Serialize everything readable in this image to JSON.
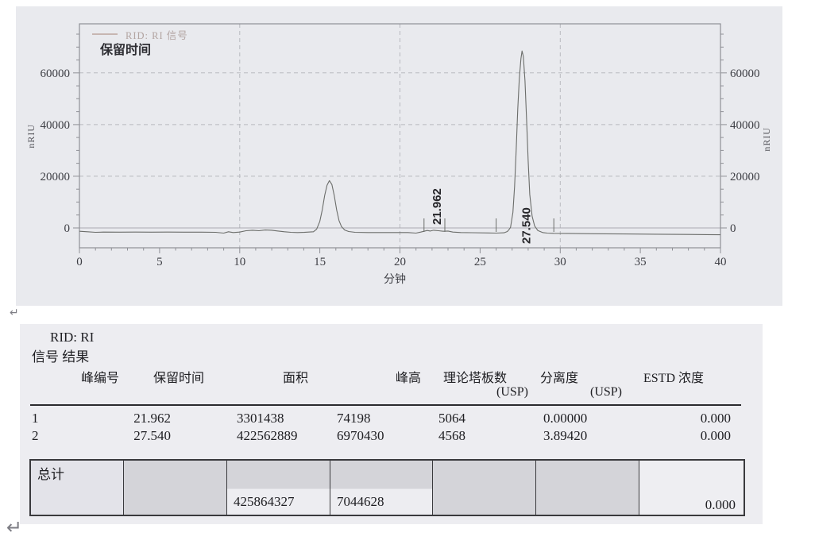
{
  "chart": {
    "colors": {
      "panel_bg": "#e9eaee",
      "frame": "#8f9096",
      "grid": "#b8b9bf",
      "zero": "#aaabb1",
      "trace": "#6b6d6a",
      "tick_text": "#3d3e44",
      "legend_text": "#b2a4a1"
    }
  },
  "chart_data": {
    "type": "line",
    "title": "保留时间",
    "series_name": "RID: RI 信号",
    "xlabel": "分钟",
    "ylabel": "nRIU",
    "xlim": [
      0,
      40
    ],
    "ylim": [
      -7700,
      79000
    ],
    "x_ticks": [
      0,
      5,
      10,
      15,
      20,
      25,
      30,
      35,
      40
    ],
    "y_ticks": [
      0,
      20000,
      40000,
      60000
    ],
    "grid_x": [
      10,
      20,
      30
    ],
    "grid_y": [
      20000,
      40000,
      60000
    ],
    "legend_position": "top-left",
    "grid": "dashed",
    "peak_labels": [
      {
        "t": 21.962,
        "text": "21.962",
        "label_y": 275
      },
      {
        "t": 27.54,
        "text": "27.540",
        "label_y": 299
      }
    ],
    "integration_marks": [
      21.5,
      22.8,
      26.0,
      29.6
    ],
    "trace": [
      [
        0,
        -1300
      ],
      [
        0.5,
        -1500
      ],
      [
        1,
        -1700
      ],
      [
        1.5,
        -1600
      ],
      [
        2.5,
        -1650
      ],
      [
        3.5,
        -1600
      ],
      [
        4.5,
        -1650
      ],
      [
        5.5,
        -1600
      ],
      [
        6.5,
        -1650
      ],
      [
        7.5,
        -1650
      ],
      [
        8.5,
        -1700
      ],
      [
        9,
        -2000
      ],
      [
        9.3,
        -1500
      ],
      [
        9.6,
        -1800
      ],
      [
        10,
        -1600
      ],
      [
        10.4,
        -1100
      ],
      [
        10.8,
        -900
      ],
      [
        11.2,
        -1100
      ],
      [
        11.6,
        -800
      ],
      [
        12,
        -900
      ],
      [
        12.4,
        -1200
      ],
      [
        12.8,
        -1500
      ],
      [
        13.2,
        -1700
      ],
      [
        13.6,
        -1800
      ],
      [
        14,
        -1750
      ],
      [
        14.6,
        -1500
      ],
      [
        14.8,
        -500
      ],
      [
        15,
        2500
      ],
      [
        15.15,
        7000
      ],
      [
        15.3,
        12500
      ],
      [
        15.45,
        16500
      ],
      [
        15.6,
        18300
      ],
      [
        15.75,
        16800
      ],
      [
        15.9,
        12500
      ],
      [
        16.05,
        7000
      ],
      [
        16.2,
        2800
      ],
      [
        16.35,
        500
      ],
      [
        16.55,
        -800
      ],
      [
        16.8,
        -1400
      ],
      [
        17.2,
        -1700
      ],
      [
        18,
        -1800
      ],
      [
        19,
        -1800
      ],
      [
        20,
        -1800
      ],
      [
        20.5,
        -1800
      ],
      [
        21,
        -2000
      ],
      [
        21.3,
        -1600
      ],
      [
        21.5,
        -1300
      ],
      [
        21.7,
        -1000
      ],
      [
        21.9,
        -1200
      ],
      [
        22.1,
        -900
      ],
      [
        22.4,
        -1100
      ],
      [
        22.7,
        -1300
      ],
      [
        23,
        -1200
      ],
      [
        23.3,
        -1600
      ],
      [
        23.8,
        -1800
      ],
      [
        24.5,
        -1850
      ],
      [
        25.5,
        -1950
      ],
      [
        26,
        -2000
      ],
      [
        26.5,
        -1900
      ],
      [
        26.7,
        -1400
      ],
      [
        26.8,
        -700
      ],
      [
        26.9,
        200
      ],
      [
        27.05,
        6000
      ],
      [
        27.15,
        16000
      ],
      [
        27.25,
        30000
      ],
      [
        27.35,
        46000
      ],
      [
        27.45,
        58000
      ],
      [
        27.55,
        65500
      ],
      [
        27.62,
        68500
      ],
      [
        27.7,
        66500
      ],
      [
        27.8,
        57000
      ],
      [
        27.9,
        42000
      ],
      [
        28,
        26000
      ],
      [
        28.1,
        13000
      ],
      [
        28.25,
        4500
      ],
      [
        28.4,
        800
      ],
      [
        28.6,
        -1000
      ],
      [
        28.9,
        -1800
      ],
      [
        29.2,
        -2000
      ],
      [
        29.6,
        -2100
      ],
      [
        30.5,
        -2150
      ],
      [
        32,
        -2250
      ],
      [
        34,
        -2350
      ],
      [
        36,
        -2450
      ],
      [
        38,
        -2550
      ],
      [
        40,
        -2650
      ]
    ]
  },
  "marks": {
    "return_top": "↵",
    "return_bottom": "↵"
  },
  "results": {
    "title_line1": "RID: RI",
    "title_line2": "信号 结果",
    "header": {
      "peak_no": "峰编号",
      "retention": "保留时间",
      "area": "面积",
      "height": "峰高",
      "plates": "理论塔板数",
      "plates_sub": "(USP)",
      "resolution": "分离度",
      "resolution_sub": "(USP)",
      "estd": "ESTD 浓度"
    },
    "rows": [
      {
        "no": "1",
        "retention": "21.962",
        "area": "3301438",
        "height": "74198",
        "plates": "5064",
        "resolution": "0.00000",
        "estd": "0.000"
      },
      {
        "no": "2",
        "retention": "27.540",
        "area": "422562889",
        "height": "6970430",
        "plates": "4568",
        "resolution": "3.89420",
        "estd": "0.000"
      }
    ],
    "total": {
      "label": "总计",
      "area": "425864327",
      "height": "7044628",
      "estd": "0.000"
    }
  }
}
